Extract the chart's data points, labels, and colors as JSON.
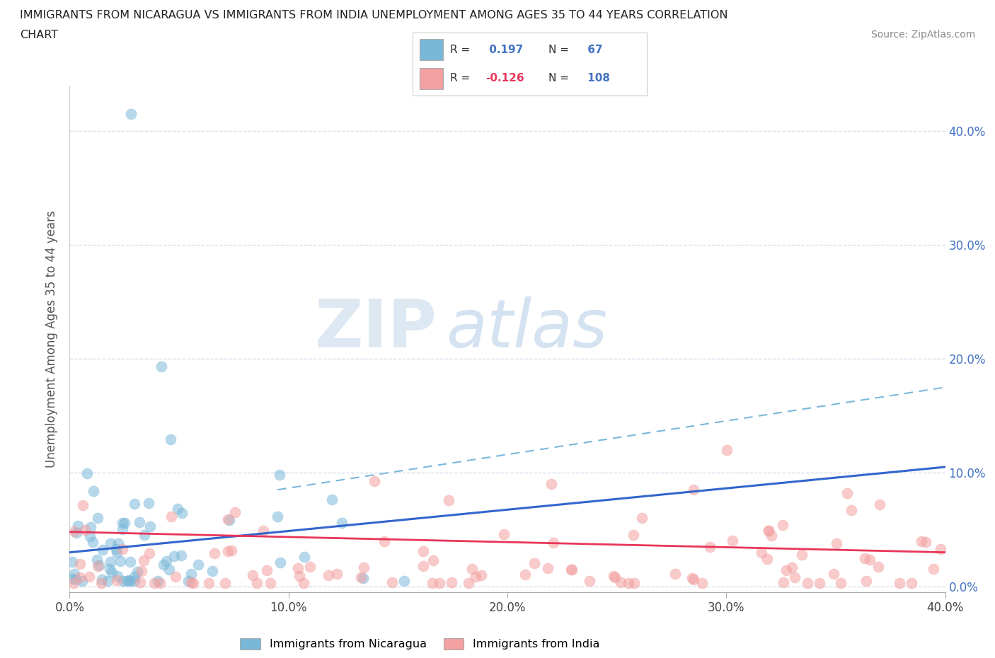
{
  "title_line1": "IMMIGRANTS FROM NICARAGUA VS IMMIGRANTS FROM INDIA UNEMPLOYMENT AMONG AGES 35 TO 44 YEARS CORRELATION",
  "title_line2": "CHART",
  "source_text": "Source: ZipAtlas.com",
  "ylabel": "Unemployment Among Ages 35 to 44 years",
  "xmin": 0.0,
  "xmax": 0.4,
  "ymin": -0.005,
  "ymax": 0.44,
  "nicaragua_color": "#7ab8d9",
  "india_color": "#f4a0a0",
  "nicaragua_line_color": "#3366cc",
  "india_line_color": "#e8355a",
  "dashed_line_color": "#7ab8d9",
  "nicaragua_R": 0.197,
  "nicaragua_N": 67,
  "india_R": -0.126,
  "india_N": 108,
  "legend_label_nicaragua": "Immigrants from Nicaragua",
  "legend_label_india": "Immigrants from India",
  "watermark_zip": "ZIP",
  "watermark_atlas": "atlas",
  "grid_color": "#d0d8e8",
  "background_color": "#ffffff",
  "ytick_labels": [
    "0.0%",
    "10.0%",
    "20.0%",
    "30.0%",
    "40.0%"
  ],
  "ytick_values": [
    0.0,
    0.1,
    0.2,
    0.3,
    0.4
  ],
  "xtick_labels": [
    "0.0%",
    "10.0%",
    "20.0%",
    "30.0%",
    "40.0%"
  ],
  "xtick_values": [
    0.0,
    0.1,
    0.2,
    0.3,
    0.4
  ],
  "right_tick_color": "#4472c4",
  "legend_r1_text": "R = ",
  "legend_r1_val": " 0.197",
  "legend_n1_text": " N = ",
  "legend_n1_val": " 67",
  "legend_r2_text": "R = ",
  "legend_r2_val": "-0.126",
  "legend_n2_text": " N = ",
  "legend_n2_val": " 108"
}
